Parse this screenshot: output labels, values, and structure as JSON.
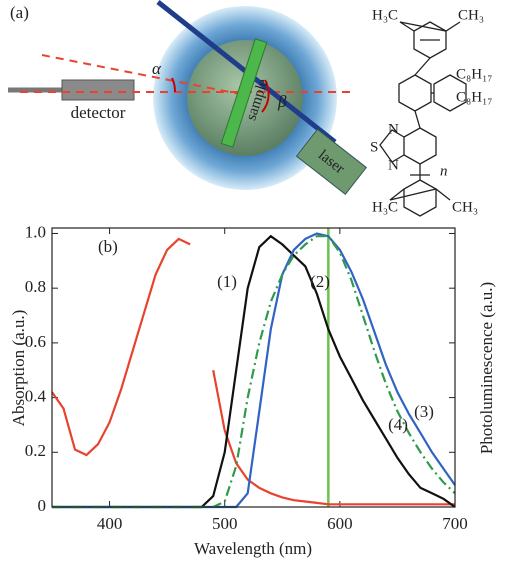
{
  "panel_a": {
    "label": "(a)",
    "detector": "detector",
    "sample": "sample",
    "laser": "laser",
    "alpha": "α",
    "beta": "β",
    "molecule": {
      "top_left": "H₃C",
      "top_right": "CH₃",
      "side_chain_1": "C₈H₁₇",
      "side_chain_2": "C₈H₁₇",
      "n_atom_1": "N",
      "s_atom": "S",
      "n_atom_2": "N",
      "repeat": "n",
      "bottom_left": "H₃C",
      "bottom_right": "CH₃"
    }
  },
  "chart_data": {
    "type": "line",
    "panel_label": "(b)",
    "x_label": "Wavelength (nm)",
    "y_label": "Absorption (a.u.)",
    "y2_label": "Photoluminescence (a.u.)",
    "x": [
      350,
      360,
      370,
      380,
      390,
      400,
      410,
      420,
      430,
      440,
      450,
      460,
      470,
      480,
      490,
      500,
      510,
      520,
      530,
      540,
      550,
      560,
      570,
      580,
      590,
      600,
      610,
      620,
      630,
      640,
      650,
      660,
      670,
      680,
      690,
      700
    ],
    "xlim": [
      350,
      700
    ],
    "xticks": [
      400,
      500,
      600,
      700
    ],
    "ylim": [
      0,
      1.02
    ],
    "yticks": [
      0,
      0.2,
      0.4,
      0.6,
      0.8,
      {
        "value": 1,
        "label": "1.0"
      }
    ],
    "vline": {
      "x": 590,
      "color": "#6cc24a"
    },
    "series": [
      {
        "name": "(1)",
        "color": "#e8432e",
        "linestyle": "solid",
        "values": [
          0.42,
          0.36,
          0.21,
          0.19,
          0.23,
          0.31,
          0.43,
          0.57,
          0.71,
          0.85,
          0.94,
          0.98,
          0.96,
          null,
          0.5,
          0.28,
          0.16,
          0.1,
          0.07,
          0.05,
          0.035,
          0.025,
          0.02,
          0.015,
          0.01,
          0.01,
          0.01,
          0.01,
          0.01,
          0.01,
          0.01,
          0.01,
          0.01,
          0.01,
          0.01,
          0.01
        ]
      },
      {
        "name": "(2)",
        "color": "#111111",
        "linestyle": "solid",
        "values": [
          0,
          0,
          0,
          0,
          0,
          0,
          0,
          0,
          0,
          0,
          0,
          0,
          0,
          0,
          0.04,
          0.2,
          0.5,
          0.8,
          0.95,
          0.99,
          0.96,
          0.92,
          0.88,
          0.78,
          0.65,
          0.55,
          0.47,
          0.39,
          0.32,
          0.25,
          0.18,
          0.12,
          0.07,
          0.05,
          0.03,
          0
        ]
      },
      {
        "name": "(3)",
        "color": "#2f63c4",
        "linestyle": "solid",
        "values": [
          0,
          0,
          0,
          0,
          0,
          0,
          0,
          0,
          0,
          0,
          0,
          0,
          0,
          0,
          0,
          0,
          0,
          0.05,
          0.35,
          0.65,
          0.85,
          0.94,
          0.98,
          1.0,
          0.99,
          0.94,
          0.86,
          0.76,
          0.64,
          0.52,
          0.42,
          0.34,
          0.27,
          0.2,
          0.14,
          0.08
        ]
      },
      {
        "name": "(4)",
        "color": "#2e9a4a",
        "linestyle": "dashdot",
        "values": [
          0,
          0,
          0,
          0,
          0,
          0,
          0,
          0,
          0,
          0,
          0,
          0,
          0,
          0,
          0,
          0.02,
          0.15,
          0.4,
          0.6,
          0.75,
          0.85,
          0.92,
          0.96,
          0.99,
          0.99,
          0.93,
          0.83,
          0.7,
          0.57,
          0.45,
          0.35,
          0.27,
          0.2,
          0.14,
          0.09,
          0.05
        ]
      }
    ]
  }
}
